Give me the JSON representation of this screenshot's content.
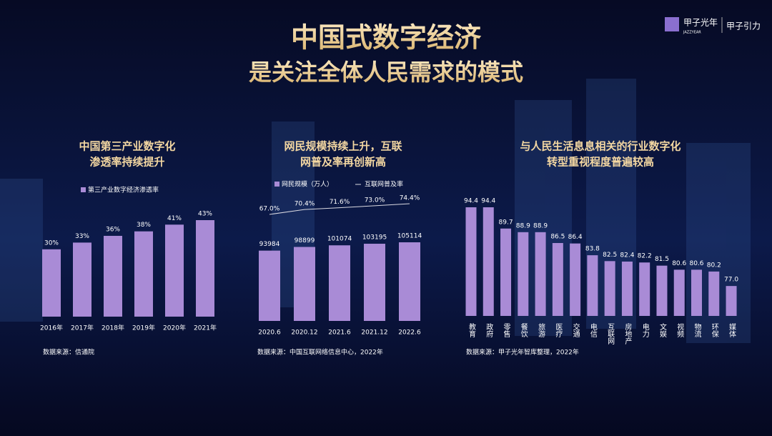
{
  "header": {
    "title": "中国式数字经济",
    "subtitle": "是关注全体人民需求的模式"
  },
  "logo": {
    "name": "甲子光年",
    "latin": "JAZZYEAR",
    "event": "甲子引力"
  },
  "chart_data": [
    {
      "type": "bar",
      "title": [
        "中国第三产业数字化",
        "渗透率持续提升"
      ],
      "categories": [
        "2016年",
        "2017年",
        "2018年",
        "2019年",
        "2020年",
        "2021年"
      ],
      "series": [
        {
          "name": "第三产业数字经济渗透率",
          "color": "#a98bd6",
          "values": [
            30,
            33,
            36,
            38,
            41,
            43
          ],
          "value_labels": [
            "30%",
            "33%",
            "36%",
            "38%",
            "41%",
            "43%"
          ]
        }
      ],
      "source": "数据来源：信通院"
    },
    {
      "type": "combo",
      "title": [
        "网民规模持续上升，互联",
        "网普及率再创新高"
      ],
      "categories": [
        "2020.6",
        "2020.12",
        "2021.6",
        "2021.12",
        "2022.6"
      ],
      "series": [
        {
          "name": "网民规模（万人）",
          "type": "bar",
          "color": "#a98bd6",
          "values": [
            93984,
            98899,
            101074,
            103195,
            105114
          ]
        },
        {
          "name": "互联网普及率",
          "type": "line",
          "axis": "y2",
          "color": "#d9d9e0",
          "values": [
            67.0,
            70.4,
            71.6,
            73.0,
            74.4
          ],
          "value_labels": [
            "67.0%",
            "70.4%",
            "71.6%",
            "73.0%",
            "74.4%"
          ]
        }
      ],
      "source": "数据来源：中国互联网络信息中心，2022年"
    },
    {
      "type": "bar",
      "title": [
        "与人民生活息息相关的行业数字化",
        "转型重视程度普遍较高"
      ],
      "categories": [
        "教育",
        "政府",
        "零售",
        "餐饮",
        "旅游",
        "医疗",
        "交通",
        "电信",
        "互联网",
        "房地产",
        "电力",
        "文娱",
        "视频",
        "物流",
        "环保",
        "媒体"
      ],
      "series": [
        {
          "color": "#a98bd6",
          "values": [
            94.4,
            94.4,
            89.7,
            88.9,
            88.9,
            86.5,
            86.4,
            83.8,
            82.5,
            82.4,
            82.2,
            81.5,
            80.6,
            80.6,
            80.2,
            77.0
          ],
          "value_labels": [
            "94.4",
            "94.4",
            "89.7",
            "88.9",
            "88.9",
            "86.5",
            "86.4",
            "83.8",
            "82.5",
            "82.4",
            "82.2",
            "81.5",
            "80.6",
            "80.6",
            "80.2",
            "77.0"
          ]
        }
      ],
      "source": "数据来源：甲子光年智库整理，2022年"
    }
  ]
}
